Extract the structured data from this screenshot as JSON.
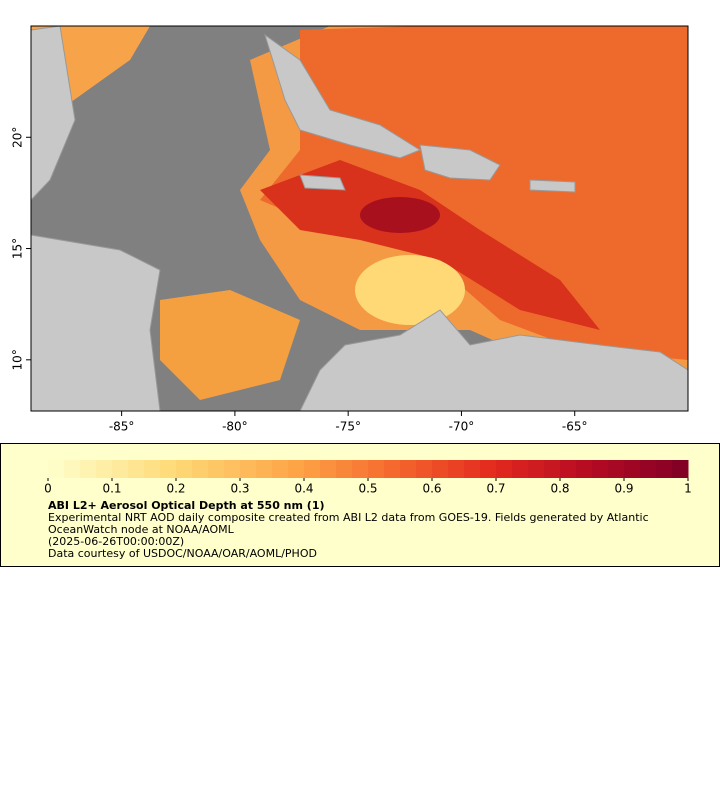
{
  "map": {
    "xlim": [
      -89,
      -60
    ],
    "ylim": [
      7.7,
      25
    ],
    "xticks": [
      {
        "value": -85,
        "label": "-85°"
      },
      {
        "value": -80,
        "label": "-80°"
      },
      {
        "value": -75,
        "label": "-75°"
      },
      {
        "value": -70,
        "label": "-70°"
      },
      {
        "value": -65,
        "label": "-65°"
      }
    ],
    "yticks": [
      {
        "value": 10,
        "label": "10°"
      },
      {
        "value": 15,
        "label": "15°"
      },
      {
        "value": 20,
        "label": "20°"
      }
    ]
  },
  "legend": {
    "lim": [
      0,
      1
    ],
    "ticks": [
      0,
      0.1,
      0.2,
      0.3,
      0.4,
      0.5,
      0.6,
      0.7,
      0.8,
      0.9,
      1
    ],
    "title": "ABI L2+ Aerosol Optical Depth at 550 nm (1)",
    "description": "Experimental NRT AOD daily composite created from ABI L2 data from GOES-19. Fields generated by Atlantic OceanWatch node at NOAA/AOML",
    "time": "(2025-06-26T00:00:00Z)",
    "credit": "Data courtesy of USDOC/NOAA/OAR/AOML/PHOD"
  }
}
